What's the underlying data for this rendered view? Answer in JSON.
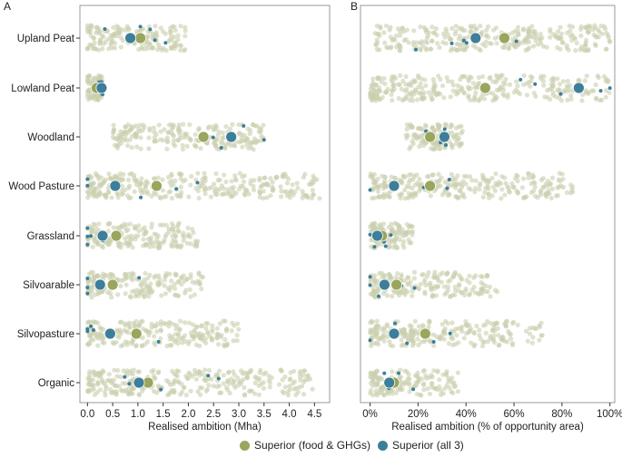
{
  "chart_data": [
    {
      "panel_label": "A",
      "type": "scatter",
      "xlabel": "Realised ambition (Mha)",
      "xlim": [
        -0.15,
        4.8
      ],
      "xticks": [
        0,
        0.5,
        1,
        1.5,
        2,
        2.5,
        3,
        3.5,
        4,
        4.5
      ],
      "xtick_labels": [
        "0.0",
        "0.5",
        "1.0",
        "1.5",
        "2.0",
        "2.5",
        "3.0",
        "3.5",
        "4.0",
        "4.5"
      ],
      "categories": [
        "Upland Peat",
        "Lowland Peat",
        "Woodland",
        "Wood Pasture",
        "Grassland",
        "Silvoarable",
        "Silvopasture",
        "Organic"
      ],
      "point_spread": [
        [
          0,
          1.95
        ],
        [
          0,
          0.3
        ],
        [
          0.5,
          3.5
        ],
        [
          0,
          4.6
        ],
        [
          0,
          2.2
        ],
        [
          0,
          2.3
        ],
        [
          0,
          3.0
        ],
        [
          0,
          4.5
        ]
      ],
      "series": [
        {
          "name": "Superior (food & GHGs)",
          "color": "#9aa55e",
          "values": [
            1.05,
            0.18,
            2.3,
            1.37,
            0.57,
            0.5,
            0.97,
            1.2
          ]
        },
        {
          "name": "Superior (all 3)",
          "color": "#3d7e9a",
          "values": [
            0.85,
            0.28,
            2.85,
            0.55,
            0.3,
            0.25,
            0.45,
            1.02
          ]
        }
      ]
    },
    {
      "panel_label": "B",
      "type": "scatter",
      "xlabel": "Realised ambition (% of opportunity area)",
      "xlim": [
        -4,
        102
      ],
      "xticks": [
        0,
        20,
        40,
        60,
        80,
        100
      ],
      "xtick_labels": [
        "0%",
        "20%",
        "40%",
        "60%",
        "80%",
        "100%"
      ],
      "categories": [
        "Upland Peat",
        "Lowland Peat",
        "Woodland",
        "Wood Pasture",
        "Grassland",
        "Silvoarable",
        "Silvopasture",
        "Organic"
      ],
      "point_spread": [
        [
          2,
          100
        ],
        [
          0,
          100
        ],
        [
          15,
          39
        ],
        [
          0,
          85
        ],
        [
          0,
          18
        ],
        [
          0,
          53
        ],
        [
          0,
          72
        ],
        [
          0,
          37
        ]
      ],
      "series": [
        {
          "name": "Superior (food & GHGs)",
          "color": "#9aa55e",
          "values": [
            56,
            48,
            25,
            25,
            5,
            11,
            23,
            10
          ]
        },
        {
          "name": "Superior (all 3)",
          "color": "#3d7e9a",
          "values": [
            44,
            87,
            31,
            10,
            3,
            6,
            10,
            8
          ]
        }
      ]
    }
  ],
  "legend": [
    {
      "label": "Superior (food & GHGs)",
      "color": "#9aa55e"
    },
    {
      "label": "Superior (all 3)",
      "color": "#3d7e9a"
    }
  ],
  "background_point_color": "#c9cfae"
}
